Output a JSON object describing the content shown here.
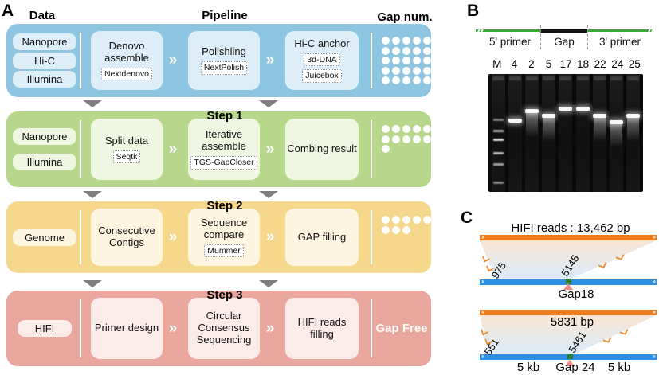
{
  "panels": {
    "a": "A",
    "b": "B",
    "c": "C"
  },
  "icons": {
    "flow_chevron": "»",
    "bar_end": "››"
  },
  "panel_a": {
    "headers": {
      "data": "Data",
      "pipeline": "Pipeline",
      "gap_num": "Gap num."
    },
    "rows": [
      {
        "inputs": [
          "Nanopore",
          "Hi-C",
          "Illumina"
        ],
        "steps": [
          {
            "title": "Denovo assemble",
            "tools": [
              "Nextdenovo"
            ]
          },
          {
            "title": "Polishling",
            "tools": [
              "NextPolish"
            ]
          },
          {
            "title": "Hi-C anchor",
            "tools": [
              "3d-DNA",
              "Juicebox"
            ]
          }
        ],
        "gap_dots": 25
      },
      {
        "step_label": "Step 1",
        "inputs": [
          "Nanopore",
          "Illumina"
        ],
        "steps": [
          {
            "title": "Split data",
            "tools": [
              "Seqtk"
            ]
          },
          {
            "title": "Iterative assemble",
            "tools": [
              "TGS-GapCloser"
            ]
          },
          {
            "title": "Combing result",
            "tools": []
          }
        ],
        "gap_dots": 11
      },
      {
        "step_label": "Step 2",
        "inputs": [
          "Genome"
        ],
        "steps": [
          {
            "title": "Consecutive Contigs",
            "tools": []
          },
          {
            "title": "Sequence compare",
            "tools": [
              "Mummer"
            ]
          },
          {
            "title": "GAP filling",
            "tools": []
          }
        ],
        "gap_dots": 8
      },
      {
        "step_label": "Step 3",
        "inputs": [
          "HIFI"
        ],
        "steps": [
          {
            "title": "Primer design",
            "tools": []
          },
          {
            "title": "Circular Consensus Sequencing",
            "tools": []
          },
          {
            "title": "HIFI reads filling",
            "tools": []
          }
        ],
        "gap_result": "Gap Free"
      }
    ]
  },
  "panel_b": {
    "primer_map": {
      "left_label": "5' primer",
      "gap_label": "Gap",
      "right_label": "3' primer"
    },
    "gel": {
      "lanes": [
        {
          "label": "M",
          "ladder": [
            38,
            47,
            55,
            66,
            76,
            91
          ]
        },
        {
          "label": "4",
          "band": 38
        },
        {
          "label": "2",
          "band": 30,
          "smear": true
        },
        {
          "label": "5",
          "band": 34,
          "smear": true
        },
        {
          "label": "17",
          "band": 28
        },
        {
          "label": "18",
          "band": 28
        },
        {
          "label": "22",
          "band": 34,
          "smear": true
        },
        {
          "label": "24",
          "band": 39,
          "smear": true
        },
        {
          "label": "25",
          "band": 34,
          "smear": true
        }
      ]
    }
  },
  "panel_c": {
    "title": "HIFI reads : 13,462 bp",
    "alignments": [
      {
        "left_num": "975",
        "right_num": "5145",
        "gap_label": "Gap18",
        "bp_label": "",
        "left_kb": "",
        "right_kb": ""
      },
      {
        "left_num": "551",
        "right_num": "5461",
        "gap_label": "Gap 24",
        "bp_label": "5831 bp",
        "left_kb": "5 kb",
        "right_kb": "5 kb"
      }
    ]
  }
}
